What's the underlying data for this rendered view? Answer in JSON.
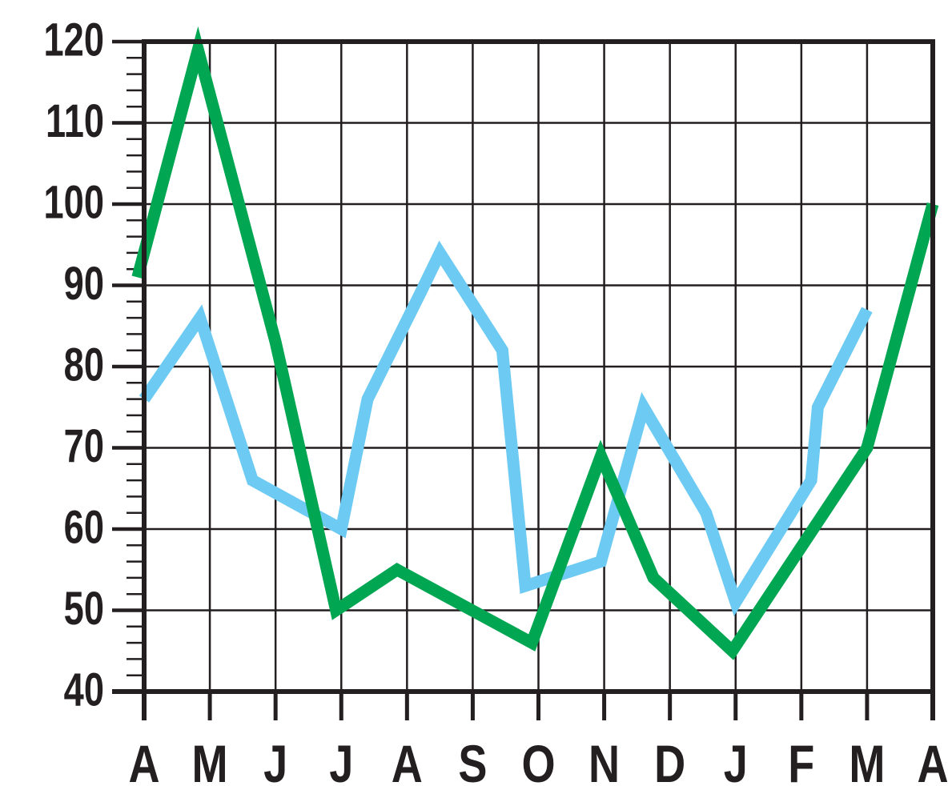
{
  "chart_data": {
    "type": "line",
    "title": "",
    "xlabel": "",
    "ylabel": "",
    "categories": [
      "A",
      "M",
      "J",
      "J",
      "A",
      "S",
      "O",
      "N",
      "D",
      "J",
      "F",
      "M",
      "A"
    ],
    "y_ticks": [
      "40",
      "50",
      "60",
      "70",
      "80",
      "90",
      "100",
      "110",
      "120"
    ],
    "ylim": [
      40,
      120
    ],
    "grid": true,
    "series": [
      {
        "color": "#6dcaf2",
        "points": [
          {
            "x": 0.0,
            "y": 76
          },
          {
            "x": 0.85,
            "y": 86
          },
          {
            "x": 1.65,
            "y": 66
          },
          {
            "x": 3.0,
            "y": 60
          },
          {
            "x": 3.4,
            "y": 76
          },
          {
            "x": 4.2,
            "y": 89
          },
          {
            "x": 4.5,
            "y": 94
          },
          {
            "x": 5.45,
            "y": 82
          },
          {
            "x": 5.8,
            "y": 53
          },
          {
            "x": 6.95,
            "y": 56
          },
          {
            "x": 7.6,
            "y": 75
          },
          {
            "x": 8.55,
            "y": 62
          },
          {
            "x": 9.0,
            "y": 51
          },
          {
            "x": 10.15,
            "y": 66
          },
          {
            "x": 10.25,
            "y": 75
          },
          {
            "x": 11.0,
            "y": 87
          }
        ]
      },
      {
        "color": "#00a651",
        "points": [
          {
            "x": -0.1,
            "y": 91
          },
          {
            "x": 0.82,
            "y": 119
          },
          {
            "x": 2.0,
            "y": 83
          },
          {
            "x": 2.92,
            "y": 50
          },
          {
            "x": 3.85,
            "y": 55
          },
          {
            "x": 5.9,
            "y": 46
          },
          {
            "x": 6.95,
            "y": 69
          },
          {
            "x": 7.75,
            "y": 54
          },
          {
            "x": 8.95,
            "y": 45
          },
          {
            "x": 11.0,
            "y": 70
          },
          {
            "x": 12.0,
            "y": 100
          }
        ]
      }
    ]
  }
}
